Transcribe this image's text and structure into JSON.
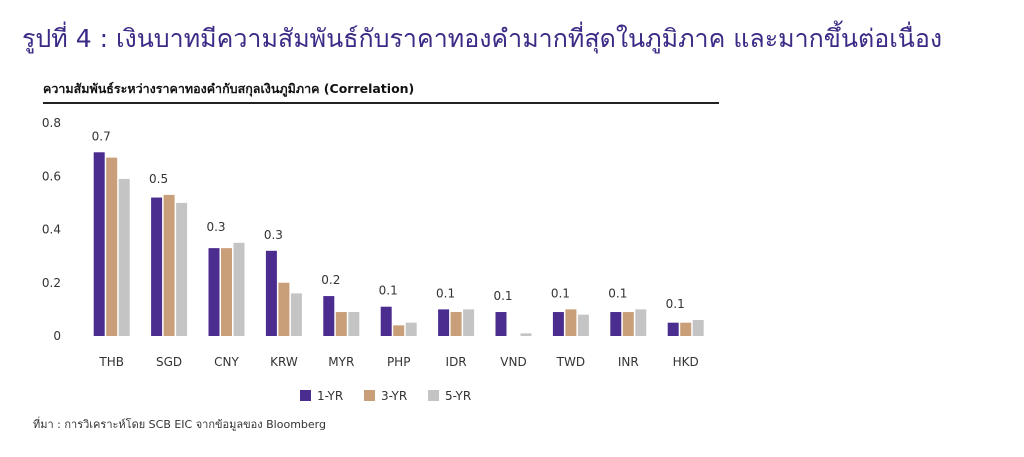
{
  "figure": {
    "title": "รูปที่ 4 : เงินบาทมีความสัมพันธ์กับราคาทองคำมากที่สุดในภูมิภาค และมากขึ้นต่อเนื่อง",
    "source": "ที่มา : การวิเคราะห์โดย SCB EIC จากข้อมูลของ Bloomberg"
  },
  "chart_data": {
    "type": "bar",
    "title": "ความสัมพันธ์ระหว่างราคาทองคำกับสกุลเงินภูมิภาค  (Correlation)",
    "xlabel": "",
    "ylabel": "",
    "categories": [
      "THB",
      "SGD",
      "CNY",
      "KRW",
      "MYR",
      "PHP",
      "IDR",
      "VND",
      "TWD",
      "INR",
      "HKD"
    ],
    "series": [
      {
        "name": "1-YR",
        "color": "#4b2d8f",
        "values": [
          0.69,
          0.52,
          0.33,
          0.32,
          0.15,
          0.11,
          0.1,
          0.09,
          0.09,
          0.09,
          0.05
        ]
      },
      {
        "name": "3-YR",
        "color": "#c99f7a",
        "values": [
          0.67,
          0.53,
          0.33,
          0.2,
          0.09,
          0.04,
          0.09,
          0.0,
          0.1,
          0.09,
          0.05
        ]
      },
      {
        "name": "5-YR",
        "color": "#c4c4c4",
        "values": [
          0.59,
          0.5,
          0.35,
          0.16,
          0.09,
          0.05,
          0.1,
          0.01,
          0.08,
          0.1,
          0.06
        ]
      }
    ],
    "data_labels": [
      "0.7",
      "0.5",
      "0.3",
      "0.3",
      "0.2",
      "0.1",
      "0.1",
      "0.1",
      "0.1",
      "0.1",
      "0.1"
    ],
    "ylim": [
      0,
      0.8
    ],
    "yticks": [
      0,
      0.2,
      0.4,
      0.6,
      0.8
    ],
    "ytick_labels": [
      "0",
      "0.2",
      "0.4",
      "0.6",
      "0.8"
    ],
    "grid": false,
    "legend_position": "bottom-center"
  }
}
